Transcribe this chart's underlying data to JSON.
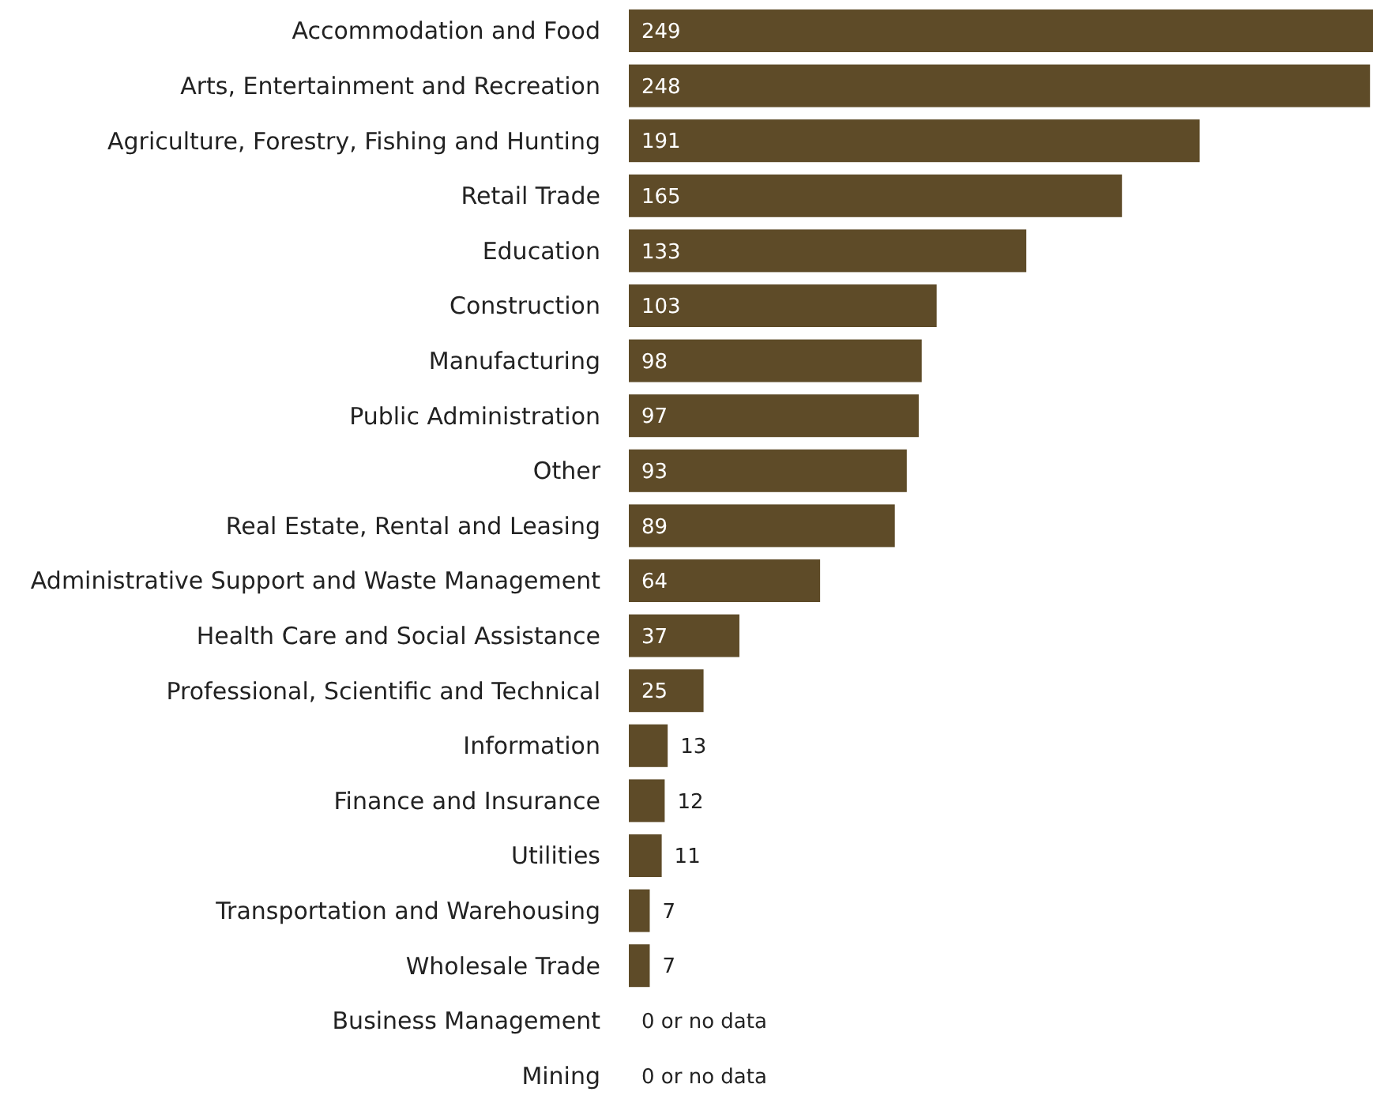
{
  "chart_data": {
    "type": "bar",
    "orientation": "horizontal",
    "categories": [
      "Accommodation and Food",
      "Arts, Entertainment and Recreation",
      "Agriculture, Forestry, Fishing and Hunting",
      "Retail Trade",
      "Education",
      "Construction",
      "Manufacturing",
      "Public Administration",
      "Other",
      "Real Estate, Rental and Leasing",
      "Administrative Support and Waste Management",
      "Health Care and Social Assistance",
      "Professional, Scientific and Technical",
      "Information",
      "Finance and Insurance",
      "Utilities",
      "Transportation and Warehousing",
      "Wholesale Trade",
      "Business Management",
      "Mining"
    ],
    "values": [
      249,
      248,
      191,
      165,
      133,
      103,
      98,
      97,
      93,
      89,
      64,
      37,
      25,
      13,
      12,
      11,
      7,
      7,
      0,
      0
    ],
    "value_labels": [
      "249",
      "248",
      "191",
      "165",
      "133",
      "103",
      "98",
      "97",
      "93",
      "89",
      "64",
      "37",
      "25",
      "13",
      "12",
      "11",
      "7",
      "7",
      "0 or no data",
      "0 or no data"
    ],
    "color": "#5e4b28",
    "grid": false,
    "legend": false
  }
}
